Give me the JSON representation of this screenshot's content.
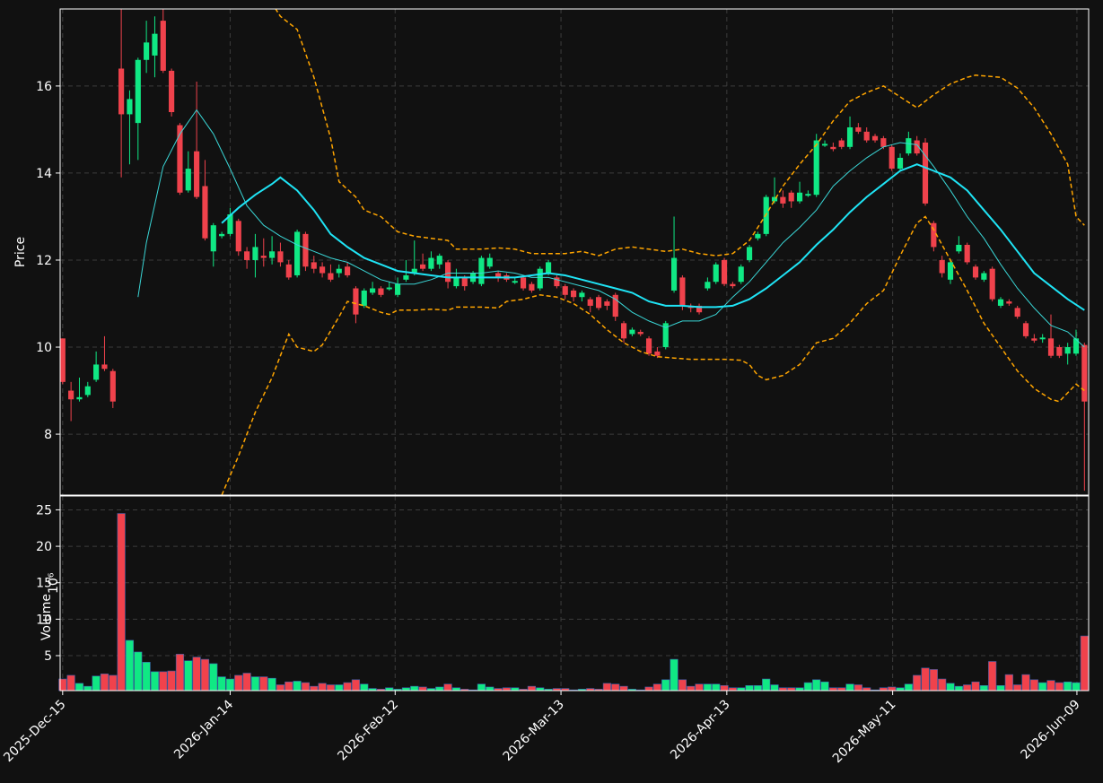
{
  "chart_data": {
    "type": "candlestick",
    "ylabel": "Price",
    "volume_ylabel": "Volume",
    "volume_ylabel_scale": "10⁶",
    "grid": true,
    "up_color": "#10e884",
    "down_color": "#f0424c",
    "xlim": [
      -0.3,
      122.5
    ],
    "xticks": [
      {
        "value": 0,
        "label": "2025-Dec-15"
      },
      {
        "value": 20,
        "label": "2026-Jan-14"
      },
      {
        "value": 39.7,
        "label": "2026-Feb-12"
      },
      {
        "value": 59.5,
        "label": "2026-Mar-13"
      },
      {
        "value": 79.3,
        "label": "2026-Apr-13"
      },
      {
        "value": 99.1,
        "label": "2026-May-11"
      },
      {
        "value": 121.1,
        "label": "2026-Jun-09"
      }
    ],
    "ylim": [
      6.6,
      17.77
    ],
    "yticks": [
      8,
      10,
      12,
      14,
      16
    ],
    "volume_ylim": [
      0.2,
      26.9
    ],
    "volume_yticks": [
      5,
      10,
      15,
      20,
      25
    ],
    "open": [
      10.2,
      9.0,
      8.8,
      8.9,
      9.25,
      9.6,
      9.45,
      16.4,
      15.35,
      15.15,
      16.6,
      16.7,
      17.5,
      16.35,
      15.1,
      13.6,
      14.5,
      13.7,
      12.2,
      12.55,
      12.6,
      12.9,
      12.2,
      12.0,
      12.1,
      12.05,
      12.2,
      11.9,
      11.65,
      12.6,
      11.95,
      11.85,
      11.7,
      11.7,
      11.85,
      11.35,
      10.95,
      11.25,
      11.35,
      11.33,
      11.2,
      11.55,
      11.7,
      11.9,
      11.8,
      11.9,
      11.95,
      11.4,
      11.6,
      11.5,
      11.45,
      11.85,
      11.7,
      11.65,
      11.48,
      11.6,
      11.45,
      11.35,
      11.7,
      11.6,
      11.4,
      11.3,
      11.15,
      11.1,
      11.15,
      11.05,
      11.2,
      10.55,
      10.3,
      10.35,
      10.2,
      9.9,
      10.0,
      11.3,
      11.6,
      10.95,
      10.95,
      11.35,
      11.5,
      12.0,
      11.45,
      11.5,
      12.0,
      12.5,
      12.6,
      13.35,
      13.45,
      13.55,
      13.35,
      13.48,
      13.5,
      14.63,
      14.6,
      14.75,
      14.6,
      15.05,
      14.95,
      14.85,
      14.8,
      14.6,
      14.1,
      14.45,
      14.75,
      14.7,
      12.85,
      12.0,
      11.55,
      12.2,
      12.35,
      11.85,
      11.55,
      11.8,
      10.95,
      11.05,
      10.9,
      10.55,
      10.2,
      10.18,
      10.2,
      10.0,
      9.85,
      9.85,
      10.05
    ],
    "high": [
      10.2,
      9.2,
      9.3,
      9.2,
      9.9,
      10.25,
      9.5,
      17.8,
      15.9,
      16.65,
      17.5,
      17.6,
      17.8,
      16.4,
      15.15,
      14.5,
      16.1,
      14.3,
      12.85,
      12.65,
      13.2,
      12.95,
      12.3,
      12.6,
      12.5,
      12.55,
      12.4,
      12.0,
      12.7,
      12.65,
      12.1,
      11.95,
      11.9,
      11.9,
      11.95,
      11.4,
      11.35,
      11.5,
      11.4,
      11.5,
      11.6,
      12.0,
      12.45,
      12.15,
      12.2,
      12.15,
      12.0,
      11.8,
      11.65,
      11.75,
      12.1,
      12.15,
      11.75,
      11.7,
      11.6,
      11.65,
      11.5,
      11.85,
      12.0,
      11.65,
      11.45,
      11.35,
      11.3,
      11.15,
      11.2,
      11.1,
      11.25,
      10.6,
      10.45,
      10.4,
      10.25,
      10.0,
      10.6,
      13.0,
      11.65,
      11.0,
      11.0,
      11.6,
      11.95,
      12.05,
      11.5,
      11.9,
      12.35,
      12.65,
      13.5,
      13.9,
      13.6,
      13.6,
      13.8,
      13.6,
      14.9,
      14.75,
      14.7,
      14.8,
      15.3,
      15.15,
      15.05,
      14.9,
      14.85,
      14.65,
      14.45,
      14.95,
      14.85,
      14.8,
      12.9,
      12.1,
      12.0,
      12.55,
      12.4,
      11.9,
      11.75,
      11.85,
      11.15,
      11.1,
      10.95,
      10.6,
      10.3,
      10.3,
      10.75,
      10.05,
      10.1,
      10.4,
      10.1
    ],
    "low": [
      9.15,
      8.3,
      8.75,
      8.85,
      9.2,
      9.45,
      8.6,
      13.9,
      14.2,
      14.3,
      16.3,
      16.2,
      16.3,
      15.3,
      13.5,
      13.55,
      13.4,
      12.45,
      11.85,
      12.5,
      12.55,
      12.1,
      11.8,
      11.6,
      11.85,
      11.9,
      11.85,
      11.55,
      11.6,
      11.75,
      11.7,
      11.6,
      11.5,
      11.6,
      11.6,
      10.55,
      10.9,
      11.2,
      11.15,
      11.3,
      11.15,
      11.5,
      11.65,
      11.75,
      11.75,
      11.8,
      11.35,
      11.35,
      11.3,
      11.45,
      11.4,
      11.8,
      11.5,
      11.5,
      11.45,
      11.3,
      11.25,
      11.3,
      11.65,
      11.35,
      11.1,
      11.05,
      11.05,
      10.8,
      10.85,
      10.85,
      10.6,
      10.1,
      10.25,
      10.25,
      9.8,
      9.75,
      9.95,
      11.25,
      10.85,
      10.8,
      10.75,
      11.3,
      11.45,
      11.4,
      11.35,
      11.45,
      11.95,
      12.45,
      12.55,
      13.3,
      13.2,
      13.2,
      13.3,
      13.45,
      13.45,
      14.6,
      14.5,
      14.55,
      14.55,
      14.9,
      14.7,
      14.7,
      14.55,
      14.05,
      14.05,
      14.4,
      14.4,
      13.25,
      12.2,
      11.6,
      11.45,
      12.15,
      11.9,
      11.55,
      11.5,
      11.05,
      10.9,
      10.95,
      10.65,
      10.2,
      10.1,
      10.1,
      9.75,
      9.75,
      9.6,
      9.8,
      6.7
    ],
    "close": [
      9.2,
      8.8,
      8.85,
      9.1,
      9.6,
      9.5,
      8.75,
      15.35,
      15.7,
      16.6,
      17.0,
      17.2,
      16.35,
      15.4,
      13.55,
      14.1,
      13.45,
      12.5,
      12.8,
      12.6,
      13.05,
      12.2,
      12.0,
      12.3,
      12.05,
      12.2,
      11.95,
      11.6,
      12.65,
      11.85,
      11.8,
      11.7,
      11.55,
      11.8,
      11.65,
      10.75,
      11.3,
      11.35,
      11.2,
      11.37,
      11.45,
      11.65,
      11.8,
      11.8,
      12.05,
      12.1,
      11.5,
      11.6,
      11.4,
      11.7,
      12.05,
      12.05,
      11.6,
      11.55,
      11.52,
      11.35,
      11.3,
      11.8,
      11.95,
      11.4,
      11.2,
      11.15,
      11.25,
      10.95,
      10.9,
      10.95,
      10.7,
      10.2,
      10.4,
      10.3,
      9.85,
      9.8,
      10.55,
      12.05,
      10.95,
      10.9,
      10.8,
      11.5,
      11.9,
      11.45,
      11.4,
      11.85,
      12.3,
      12.6,
      13.45,
      13.45,
      13.3,
      13.35,
      13.55,
      13.52,
      14.75,
      14.67,
      14.55,
      14.6,
      15.05,
      14.95,
      14.75,
      14.75,
      14.6,
      14.1,
      14.35,
      14.8,
      14.45,
      13.3,
      12.3,
      11.7,
      11.95,
      12.35,
      11.95,
      11.6,
      11.7,
      11.1,
      11.1,
      11.0,
      10.7,
      10.25,
      10.15,
      10.22,
      9.8,
      9.8,
      10.0,
      10.2,
      8.75
    ],
    "volume": [
      1.8,
      2.3,
      1.2,
      0.8,
      2.2,
      2.5,
      2.3,
      24.5,
      7.1,
      5.5,
      4.1,
      2.8,
      2.8,
      2.9,
      5.2,
      4.3,
      4.8,
      4.5,
      3.9,
      2.1,
      1.8,
      2.3,
      2.6,
      2.1,
      2.1,
      1.9,
      1.0,
      1.4,
      1.5,
      1.3,
      0.8,
      1.2,
      1.0,
      1.0,
      1.3,
      1.7,
      1.1,
      0.5,
      0.4,
      0.6,
      0.4,
      0.6,
      0.8,
      0.7,
      0.5,
      0.7,
      1.1,
      0.6,
      0.4,
      0.3,
      1.1,
      0.7,
      0.5,
      0.6,
      0.6,
      0.4,
      0.8,
      0.6,
      0.4,
      0.5,
      0.5,
      0.3,
      0.4,
      0.5,
      0.4,
      1.2,
      1.1,
      0.8,
      0.4,
      0.3,
      0.7,
      1.1,
      1.7,
      4.5,
      1.7,
      0.8,
      1.1,
      1.1,
      1.1,
      0.9,
      0.6,
      0.6,
      0.9,
      0.9,
      1.8,
      1.0,
      0.6,
      0.6,
      0.6,
      1.3,
      1.7,
      1.4,
      0.6,
      0.6,
      1.1,
      1.0,
      0.6,
      0.3,
      0.6,
      0.7,
      0.6,
      1.1,
      2.3,
      3.3,
      3.1,
      1.8,
      1.2,
      0.8,
      1.0,
      1.4,
      0.9,
      4.2,
      0.9,
      2.4,
      1.0,
      2.4,
      1.7,
      1.3,
      1.6,
      1.3,
      1.4,
      1.3,
      7.7
    ],
    "overlays": [
      {
        "color": "#3ad6d6",
        "width": 1,
        "dash": false,
        "x": [
          9,
          10,
          12,
          14,
          16,
          18,
          20,
          22,
          24,
          26,
          28,
          30,
          32,
          34,
          36,
          38,
          40,
          42,
          44,
          46,
          48,
          50,
          52,
          54,
          56,
          58,
          60,
          62,
          64,
          66,
          68,
          70,
          72,
          74,
          76,
          78,
          80,
          82,
          84,
          86,
          88,
          90,
          92,
          94,
          96,
          98,
          100,
          102,
          104,
          106,
          108,
          110,
          112,
          114,
          116,
          118,
          120,
          122
        ],
        "values": [
          11.15,
          12.4,
          14.15,
          14.9,
          15.45,
          14.9,
          14.1,
          13.25,
          12.8,
          12.55,
          12.35,
          12.2,
          12.05,
          11.95,
          11.75,
          11.55,
          11.45,
          11.45,
          11.55,
          11.7,
          11.7,
          11.7,
          11.75,
          11.7,
          11.6,
          11.6,
          11.5,
          11.4,
          11.3,
          11.1,
          10.8,
          10.6,
          10.45,
          10.6,
          10.6,
          10.75,
          11.15,
          11.5,
          11.95,
          12.4,
          12.75,
          13.15,
          13.7,
          14.05,
          14.35,
          14.6,
          14.7,
          14.65,
          14.15,
          13.6,
          13.0,
          12.5,
          11.9,
          11.35,
          10.9,
          10.5,
          10.35,
          10.0
        ]
      },
      {
        "color": "#1fe4f5",
        "width": 2,
        "dash": false,
        "x": [
          19,
          21,
          23,
          25,
          26,
          28,
          30,
          32,
          34,
          36,
          38,
          40,
          42,
          44,
          46,
          48,
          50,
          52,
          54,
          56,
          58,
          60,
          62,
          64,
          66,
          68,
          70,
          72,
          74,
          76,
          78,
          80,
          82,
          84,
          86,
          88,
          90,
          92,
          94,
          96,
          98,
          100,
          102,
          104,
          106,
          108,
          110,
          112,
          114,
          116,
          118,
          120,
          122
        ],
        "values": [
          12.85,
          13.2,
          13.5,
          13.75,
          13.9,
          13.6,
          13.15,
          12.6,
          12.3,
          12.05,
          11.9,
          11.75,
          11.7,
          11.65,
          11.6,
          11.6,
          11.6,
          11.6,
          11.6,
          11.65,
          11.7,
          11.65,
          11.55,
          11.45,
          11.35,
          11.25,
          11.05,
          10.95,
          10.95,
          10.92,
          10.92,
          10.95,
          11.1,
          11.35,
          11.65,
          11.95,
          12.35,
          12.7,
          13.1,
          13.45,
          13.75,
          14.05,
          14.2,
          14.05,
          13.9,
          13.6,
          13.15,
          12.7,
          12.2,
          11.7,
          11.4,
          11.1,
          10.85
        ]
      },
      {
        "color": "#ffa500",
        "width": 1.5,
        "dash": true,
        "x": [
          24,
          26,
          28,
          30,
          32,
          33,
          35,
          36,
          38,
          40,
          42,
          44,
          46,
          47,
          50,
          52,
          54,
          56,
          58,
          60,
          62,
          64,
          66,
          68,
          70,
          72,
          74,
          76,
          78,
          80,
          82,
          84,
          86,
          88,
          90,
          92,
          94,
          96,
          98,
          100,
          102,
          104,
          106,
          108,
          109,
          112,
          114,
          116,
          118,
          120,
          121,
          122
        ],
        "values": [
          18.2,
          17.6,
          17.3,
          16.2,
          14.8,
          13.8,
          13.45,
          13.15,
          13.0,
          12.65,
          12.55,
          12.5,
          12.45,
          12.25,
          12.25,
          12.28,
          12.25,
          12.15,
          12.15,
          12.15,
          12.2,
          12.1,
          12.25,
          12.3,
          12.25,
          12.2,
          12.25,
          12.15,
          12.1,
          12.15,
          12.45,
          13.05,
          13.7,
          14.2,
          14.65,
          15.2,
          15.65,
          15.85,
          16.0,
          15.75,
          15.5,
          15.8,
          16.05,
          16.2,
          16.25,
          16.2,
          15.95,
          15.5,
          14.9,
          14.2,
          13.0,
          12.8
        ]
      },
      {
        "color": "#ffa500",
        "width": 1.5,
        "dash": true,
        "x": [
          19,
          21,
          23,
          25,
          26,
          27,
          28,
          30,
          31,
          33,
          34,
          36,
          38,
          39,
          40,
          42,
          44,
          46,
          47,
          50,
          52,
          53,
          55,
          57,
          59,
          61,
          63,
          65,
          67,
          69,
          71,
          73,
          75,
          77,
          79,
          81,
          82,
          83,
          84,
          86,
          88,
          90,
          92,
          94,
          96,
          98,
          100,
          102,
          103,
          104,
          106,
          108,
          110,
          112,
          114,
          116,
          118,
          119,
          121,
          122
        ],
        "values": [
          6.6,
          7.5,
          8.5,
          9.3,
          9.8,
          10.3,
          10.0,
          9.9,
          10.05,
          10.7,
          11.05,
          10.95,
          10.8,
          10.75,
          10.85,
          10.85,
          10.87,
          10.85,
          10.92,
          10.92,
          10.9,
          11.05,
          11.1,
          11.2,
          11.15,
          11.0,
          10.75,
          10.4,
          10.1,
          9.9,
          9.78,
          9.75,
          9.72,
          9.72,
          9.72,
          9.7,
          9.6,
          9.35,
          9.25,
          9.35,
          9.6,
          10.1,
          10.2,
          10.55,
          11.0,
          11.3,
          12.1,
          12.85,
          13.0,
          12.7,
          12.0,
          11.3,
          10.55,
          10.0,
          9.45,
          9.05,
          8.8,
          8.75,
          9.15,
          9.0
        ]
      }
    ]
  }
}
